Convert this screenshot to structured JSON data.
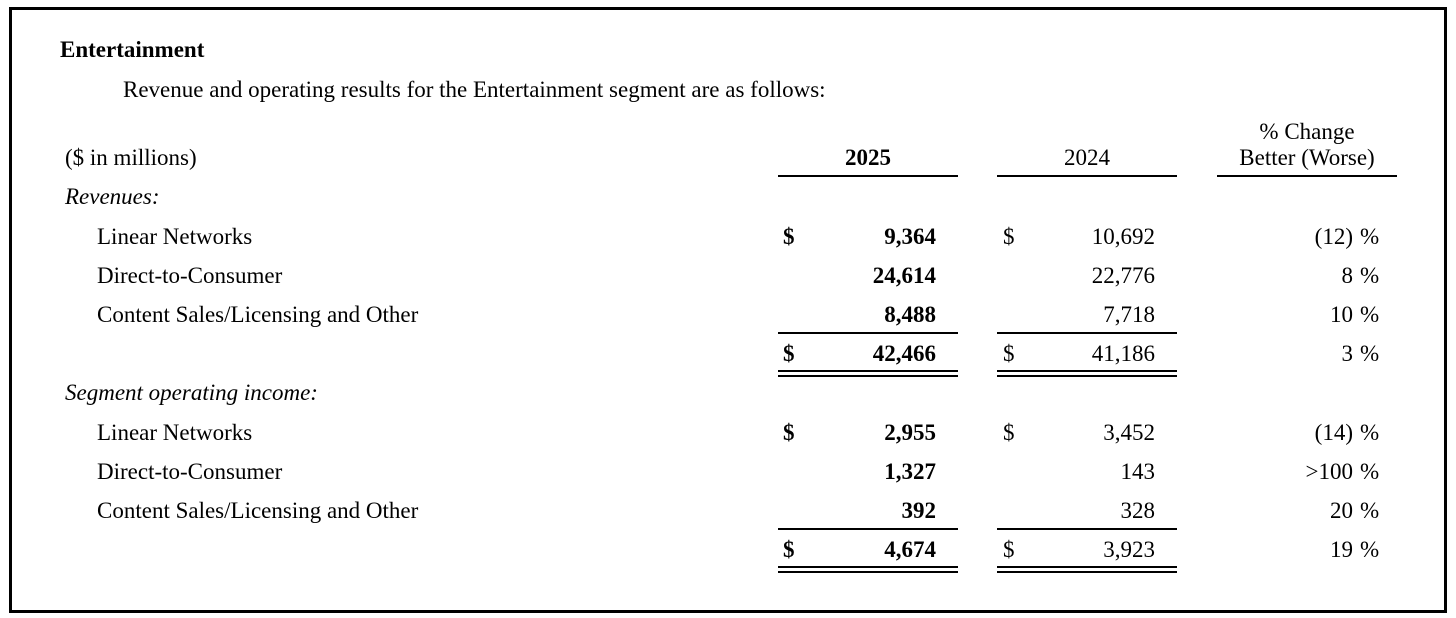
{
  "title": "Entertainment",
  "intro": "Revenue and operating results for the Entertainment segment are as follows:",
  "table": {
    "header": {
      "unit_label": "($ in millions)",
      "col_2025": "2025",
      "col_2024": "2024",
      "change_line1": "% Change",
      "change_line2": "Better (Worse)"
    },
    "sections": [
      {
        "heading": "Revenues:",
        "rows": [
          {
            "label": "Linear Networks",
            "cur_2025": "$",
            "val_2025": "9,364",
            "cur_2024": "$",
            "val_2024": "10,692",
            "change": "(12)",
            "pct": "%"
          },
          {
            "label": "Direct-to-Consumer",
            "val_2025": "24,614",
            "val_2024": "22,776",
            "change": "8",
            "pct": "%"
          },
          {
            "label": "Content Sales/Licensing and Other",
            "val_2025": "8,488",
            "val_2024": "7,718",
            "change": "10",
            "pct": "%"
          }
        ],
        "total": {
          "cur_2025": "$",
          "val_2025": "42,466",
          "cur_2024": "$",
          "val_2024": "41,186",
          "change": "3",
          "pct": "%"
        }
      },
      {
        "heading": "Segment operating income:",
        "rows": [
          {
            "label": "Linear Networks",
            "cur_2025": "$",
            "val_2025": "2,955",
            "cur_2024": "$",
            "val_2024": "3,452",
            "change": "(14)",
            "pct": "%"
          },
          {
            "label": "Direct-to-Consumer",
            "val_2025": "1,327",
            "val_2024": "143",
            "change": ">100",
            "pct": "%"
          },
          {
            "label": "Content Sales/Licensing and Other",
            "val_2025": "392",
            "val_2024": "328",
            "change": "20",
            "pct": "%"
          }
        ],
        "total": {
          "cur_2025": "$",
          "val_2025": "4,674",
          "cur_2024": "$",
          "val_2024": "3,923",
          "change": "19",
          "pct": "%"
        }
      }
    ]
  }
}
